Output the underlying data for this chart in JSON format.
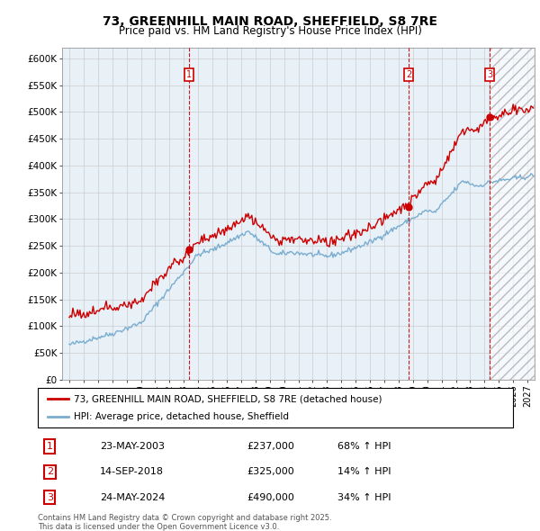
{
  "title": "73, GREENHILL MAIN ROAD, SHEFFIELD, S8 7RE",
  "subtitle": "Price paid vs. HM Land Registry's House Price Index (HPI)",
  "property_label": "73, GREENHILL MAIN ROAD, SHEFFIELD, S8 7RE (detached house)",
  "hpi_label": "HPI: Average price, detached house, Sheffield",
  "property_color": "#cc0000",
  "hpi_color": "#7aadcf",
  "vertical_line_color": "#cc0000",
  "sales": [
    {
      "num": 1,
      "date_x": 2003.38,
      "price": 237000,
      "label": "23-MAY-2003",
      "pct": "68%"
    },
    {
      "num": 2,
      "date_x": 2018.71,
      "price": 325000,
      "label": "14-SEP-2018",
      "pct": "14%"
    },
    {
      "num": 3,
      "date_x": 2024.38,
      "price": 490000,
      "label": "24-MAY-2024",
      "pct": "34%"
    }
  ],
  "ylim": [
    0,
    620000
  ],
  "xlim": [
    1994.5,
    2027.5
  ],
  "yticks": [
    0,
    50000,
    100000,
    150000,
    200000,
    250000,
    300000,
    350000,
    400000,
    450000,
    500000,
    550000,
    600000
  ],
  "ytick_labels": [
    "£0",
    "£50K",
    "£100K",
    "£150K",
    "£200K",
    "£250K",
    "£300K",
    "£350K",
    "£400K",
    "£450K",
    "£500K",
    "£550K",
    "£600K"
  ],
  "footer_text": "Contains HM Land Registry data © Crown copyright and database right 2025.\nThis data is licensed under the Open Government Licence v3.0.",
  "bg_color": "#ffffff",
  "grid_color": "#cccccc",
  "chart_bg": "#e8f0f8"
}
